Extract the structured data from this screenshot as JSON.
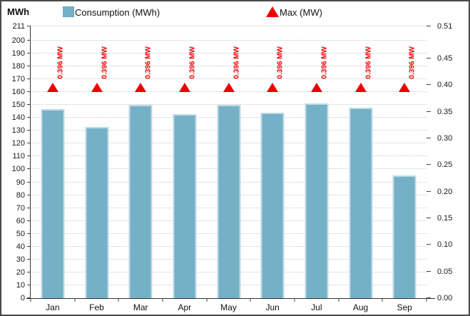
{
  "header": {
    "axis_title": "MWh",
    "legend": [
      {
        "label": "Consumption (MWh)",
        "marker": "square",
        "color": "#74B1C7"
      },
      {
        "label": "Max (MW)",
        "marker": "triangle",
        "color": "#EE0000"
      }
    ]
  },
  "chart_data": {
    "type": "bar",
    "categories": [
      "Jan",
      "Feb",
      "Mar",
      "Apr",
      "May",
      "Jun",
      "Jul",
      "Aug",
      "Sep"
    ],
    "series": [
      {
        "name": "Consumption (MWh)",
        "type": "bar",
        "axis": "left",
        "values": [
          147,
          133,
          150,
          143,
          150,
          144,
          151,
          148,
          95
        ]
      },
      {
        "name": "Max (MW)",
        "type": "triangle-point",
        "axis": "right",
        "values": [
          0.396,
          0.396,
          0.396,
          0.396,
          0.396,
          0.396,
          0.396,
          0.396,
          0.396
        ],
        "point_labels": [
          "0.396 MW",
          "0.396 MW",
          "0.396 MW",
          "0.396 MW",
          "0.396 MW",
          "0.396 MW",
          "0.396 MW",
          "0.396 MW",
          "0.396 MW"
        ]
      }
    ],
    "left_axis": {
      "label": "MWh",
      "min": 0,
      "max": 211,
      "ticks": [
        0,
        10,
        20,
        30,
        40,
        50,
        60,
        70,
        80,
        90,
        100,
        110,
        120,
        130,
        140,
        150,
        160,
        170,
        180,
        190,
        200,
        211
      ]
    },
    "right_axis": {
      "min": 0,
      "max": 0.51,
      "decimals": 2,
      "ticks": [
        0,
        0.05,
        0.1,
        0.15,
        0.2,
        0.25,
        0.3,
        0.35,
        0.4,
        0.45,
        0.51
      ]
    },
    "grid": {
      "horizontal": true,
      "style": "dotted"
    },
    "legend_position": "top",
    "colors": {
      "bar_fill": "#74B1C7",
      "bar_border": "#BCDAE4",
      "marker": "#EE0000",
      "marker_label": "#EE0000",
      "grid": "#C9C9C9",
      "axis": "#333333",
      "text": "#111111"
    }
  }
}
